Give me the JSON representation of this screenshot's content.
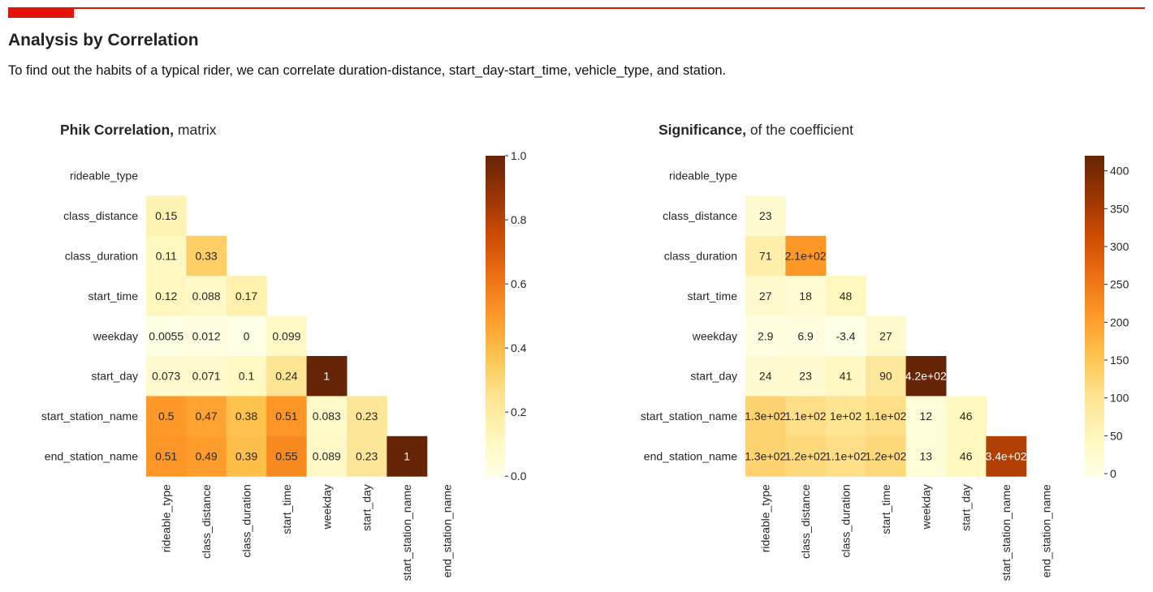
{
  "header": {
    "title": "Analysis by Correlation",
    "subtitle": "To find out the habits of a typical rider, we can correlate duration-distance, start_day-start_time, vehicle_type, and station."
  },
  "colors": {
    "accent": "#e3120b",
    "text": "#262626"
  },
  "chart_data": [
    {
      "type": "heatmap",
      "title_bold": "Phik Correlation,",
      "title_rest": " matrix",
      "labels": [
        "rideable_type",
        "class_distance",
        "class_duration",
        "start_time",
        "weekday",
        "start_day",
        "start_station_name",
        "end_station_name"
      ],
      "colormap": "YlOrBr",
      "mask": "upper-triangle including diagonal",
      "vmin": 0,
      "vmax": 1,
      "colorbar_ticks": [
        "0.0",
        "0.2",
        "0.4",
        "0.6",
        "0.8",
        "1.0"
      ],
      "colorbar_tick_values": [
        0,
        0.2,
        0.4,
        0.6,
        0.8,
        1.0
      ],
      "cells": [
        {
          "row": 1,
          "col": 0,
          "value": 0.15,
          "label": "0.15"
        },
        {
          "row": 2,
          "col": 0,
          "value": 0.11,
          "label": "0.11"
        },
        {
          "row": 2,
          "col": 1,
          "value": 0.33,
          "label": "0.33"
        },
        {
          "row": 3,
          "col": 0,
          "value": 0.12,
          "label": "0.12"
        },
        {
          "row": 3,
          "col": 1,
          "value": 0.088,
          "label": "0.088"
        },
        {
          "row": 3,
          "col": 2,
          "value": 0.17,
          "label": "0.17"
        },
        {
          "row": 4,
          "col": 0,
          "value": 0.0055,
          "label": "0.0055"
        },
        {
          "row": 4,
          "col": 1,
          "value": 0.012,
          "label": "0.012"
        },
        {
          "row": 4,
          "col": 2,
          "value": 0,
          "label": "0"
        },
        {
          "row": 4,
          "col": 3,
          "value": 0.099,
          "label": "0.099"
        },
        {
          "row": 5,
          "col": 0,
          "value": 0.073,
          "label": "0.073"
        },
        {
          "row": 5,
          "col": 1,
          "value": 0.071,
          "label": "0.071"
        },
        {
          "row": 5,
          "col": 2,
          "value": 0.1,
          "label": "0.1"
        },
        {
          "row": 5,
          "col": 3,
          "value": 0.24,
          "label": "0.24"
        },
        {
          "row": 5,
          "col": 4,
          "value": 1,
          "label": "1"
        },
        {
          "row": 6,
          "col": 0,
          "value": 0.5,
          "label": "0.5"
        },
        {
          "row": 6,
          "col": 1,
          "value": 0.47,
          "label": "0.47"
        },
        {
          "row": 6,
          "col": 2,
          "value": 0.38,
          "label": "0.38"
        },
        {
          "row": 6,
          "col": 3,
          "value": 0.51,
          "label": "0.51"
        },
        {
          "row": 6,
          "col": 4,
          "value": 0.083,
          "label": "0.083"
        },
        {
          "row": 6,
          "col": 5,
          "value": 0.23,
          "label": "0.23"
        },
        {
          "row": 7,
          "col": 0,
          "value": 0.51,
          "label": "0.51"
        },
        {
          "row": 7,
          "col": 1,
          "value": 0.49,
          "label": "0.49"
        },
        {
          "row": 7,
          "col": 2,
          "value": 0.39,
          "label": "0.39"
        },
        {
          "row": 7,
          "col": 3,
          "value": 0.55,
          "label": "0.55"
        },
        {
          "row": 7,
          "col": 4,
          "value": 0.089,
          "label": "0.089"
        },
        {
          "row": 7,
          "col": 5,
          "value": 0.23,
          "label": "0.23"
        },
        {
          "row": 7,
          "col": 6,
          "value": 1,
          "label": "1"
        }
      ]
    },
    {
      "type": "heatmap",
      "title_bold": "Significance,",
      "title_rest": " of the coefficient",
      "labels": [
        "rideable_type",
        "class_distance",
        "class_duration",
        "start_time",
        "weekday",
        "start_day",
        "start_station_name",
        "end_station_name"
      ],
      "colormap": "YlOrBr",
      "mask": "upper-triangle including diagonal",
      "vmin": -3.4,
      "vmax": 420,
      "colorbar_ticks": [
        "0",
        "50",
        "100",
        "150",
        "200",
        "250",
        "300",
        "350",
        "400"
      ],
      "colorbar_tick_values": [
        0,
        50,
        100,
        150,
        200,
        250,
        300,
        350,
        400
      ],
      "cells": [
        {
          "row": 1,
          "col": 0,
          "value": 23,
          "label": "23"
        },
        {
          "row": 2,
          "col": 0,
          "value": 71,
          "label": "71"
        },
        {
          "row": 2,
          "col": 1,
          "value": 210,
          "label": "2.1e+02"
        },
        {
          "row": 3,
          "col": 0,
          "value": 27,
          "label": "27"
        },
        {
          "row": 3,
          "col": 1,
          "value": 18,
          "label": "18"
        },
        {
          "row": 3,
          "col": 2,
          "value": 48,
          "label": "48"
        },
        {
          "row": 4,
          "col": 0,
          "value": 2.9,
          "label": "2.9"
        },
        {
          "row": 4,
          "col": 1,
          "value": 6.9,
          "label": "6.9"
        },
        {
          "row": 4,
          "col": 2,
          "value": -3.4,
          "label": "-3.4"
        },
        {
          "row": 4,
          "col": 3,
          "value": 27,
          "label": "27"
        },
        {
          "row": 5,
          "col": 0,
          "value": 24,
          "label": "24"
        },
        {
          "row": 5,
          "col": 1,
          "value": 23,
          "label": "23"
        },
        {
          "row": 5,
          "col": 2,
          "value": 41,
          "label": "41"
        },
        {
          "row": 5,
          "col": 3,
          "value": 90,
          "label": "90"
        },
        {
          "row": 5,
          "col": 4,
          "value": 420,
          "label": "4.2e+02"
        },
        {
          "row": 6,
          "col": 0,
          "value": 130,
          "label": "1.3e+02"
        },
        {
          "row": 6,
          "col": 1,
          "value": 110,
          "label": "1.1e+02"
        },
        {
          "row": 6,
          "col": 2,
          "value": 100,
          "label": "1e+02"
        },
        {
          "row": 6,
          "col": 3,
          "value": 110,
          "label": "1.1e+02"
        },
        {
          "row": 6,
          "col": 4,
          "value": 12,
          "label": "12"
        },
        {
          "row": 6,
          "col": 5,
          "value": 46,
          "label": "46"
        },
        {
          "row": 7,
          "col": 0,
          "value": 130,
          "label": "1.3e+02"
        },
        {
          "row": 7,
          "col": 1,
          "value": 120,
          "label": "1.2e+02"
        },
        {
          "row": 7,
          "col": 2,
          "value": 110,
          "label": "1.1e+02"
        },
        {
          "row": 7,
          "col": 3,
          "value": 120,
          "label": "1.2e+02"
        },
        {
          "row": 7,
          "col": 4,
          "value": 13,
          "label": "13"
        },
        {
          "row": 7,
          "col": 5,
          "value": 46,
          "label": "46"
        },
        {
          "row": 7,
          "col": 6,
          "value": 340,
          "label": "3.4e+02"
        }
      ]
    }
  ]
}
